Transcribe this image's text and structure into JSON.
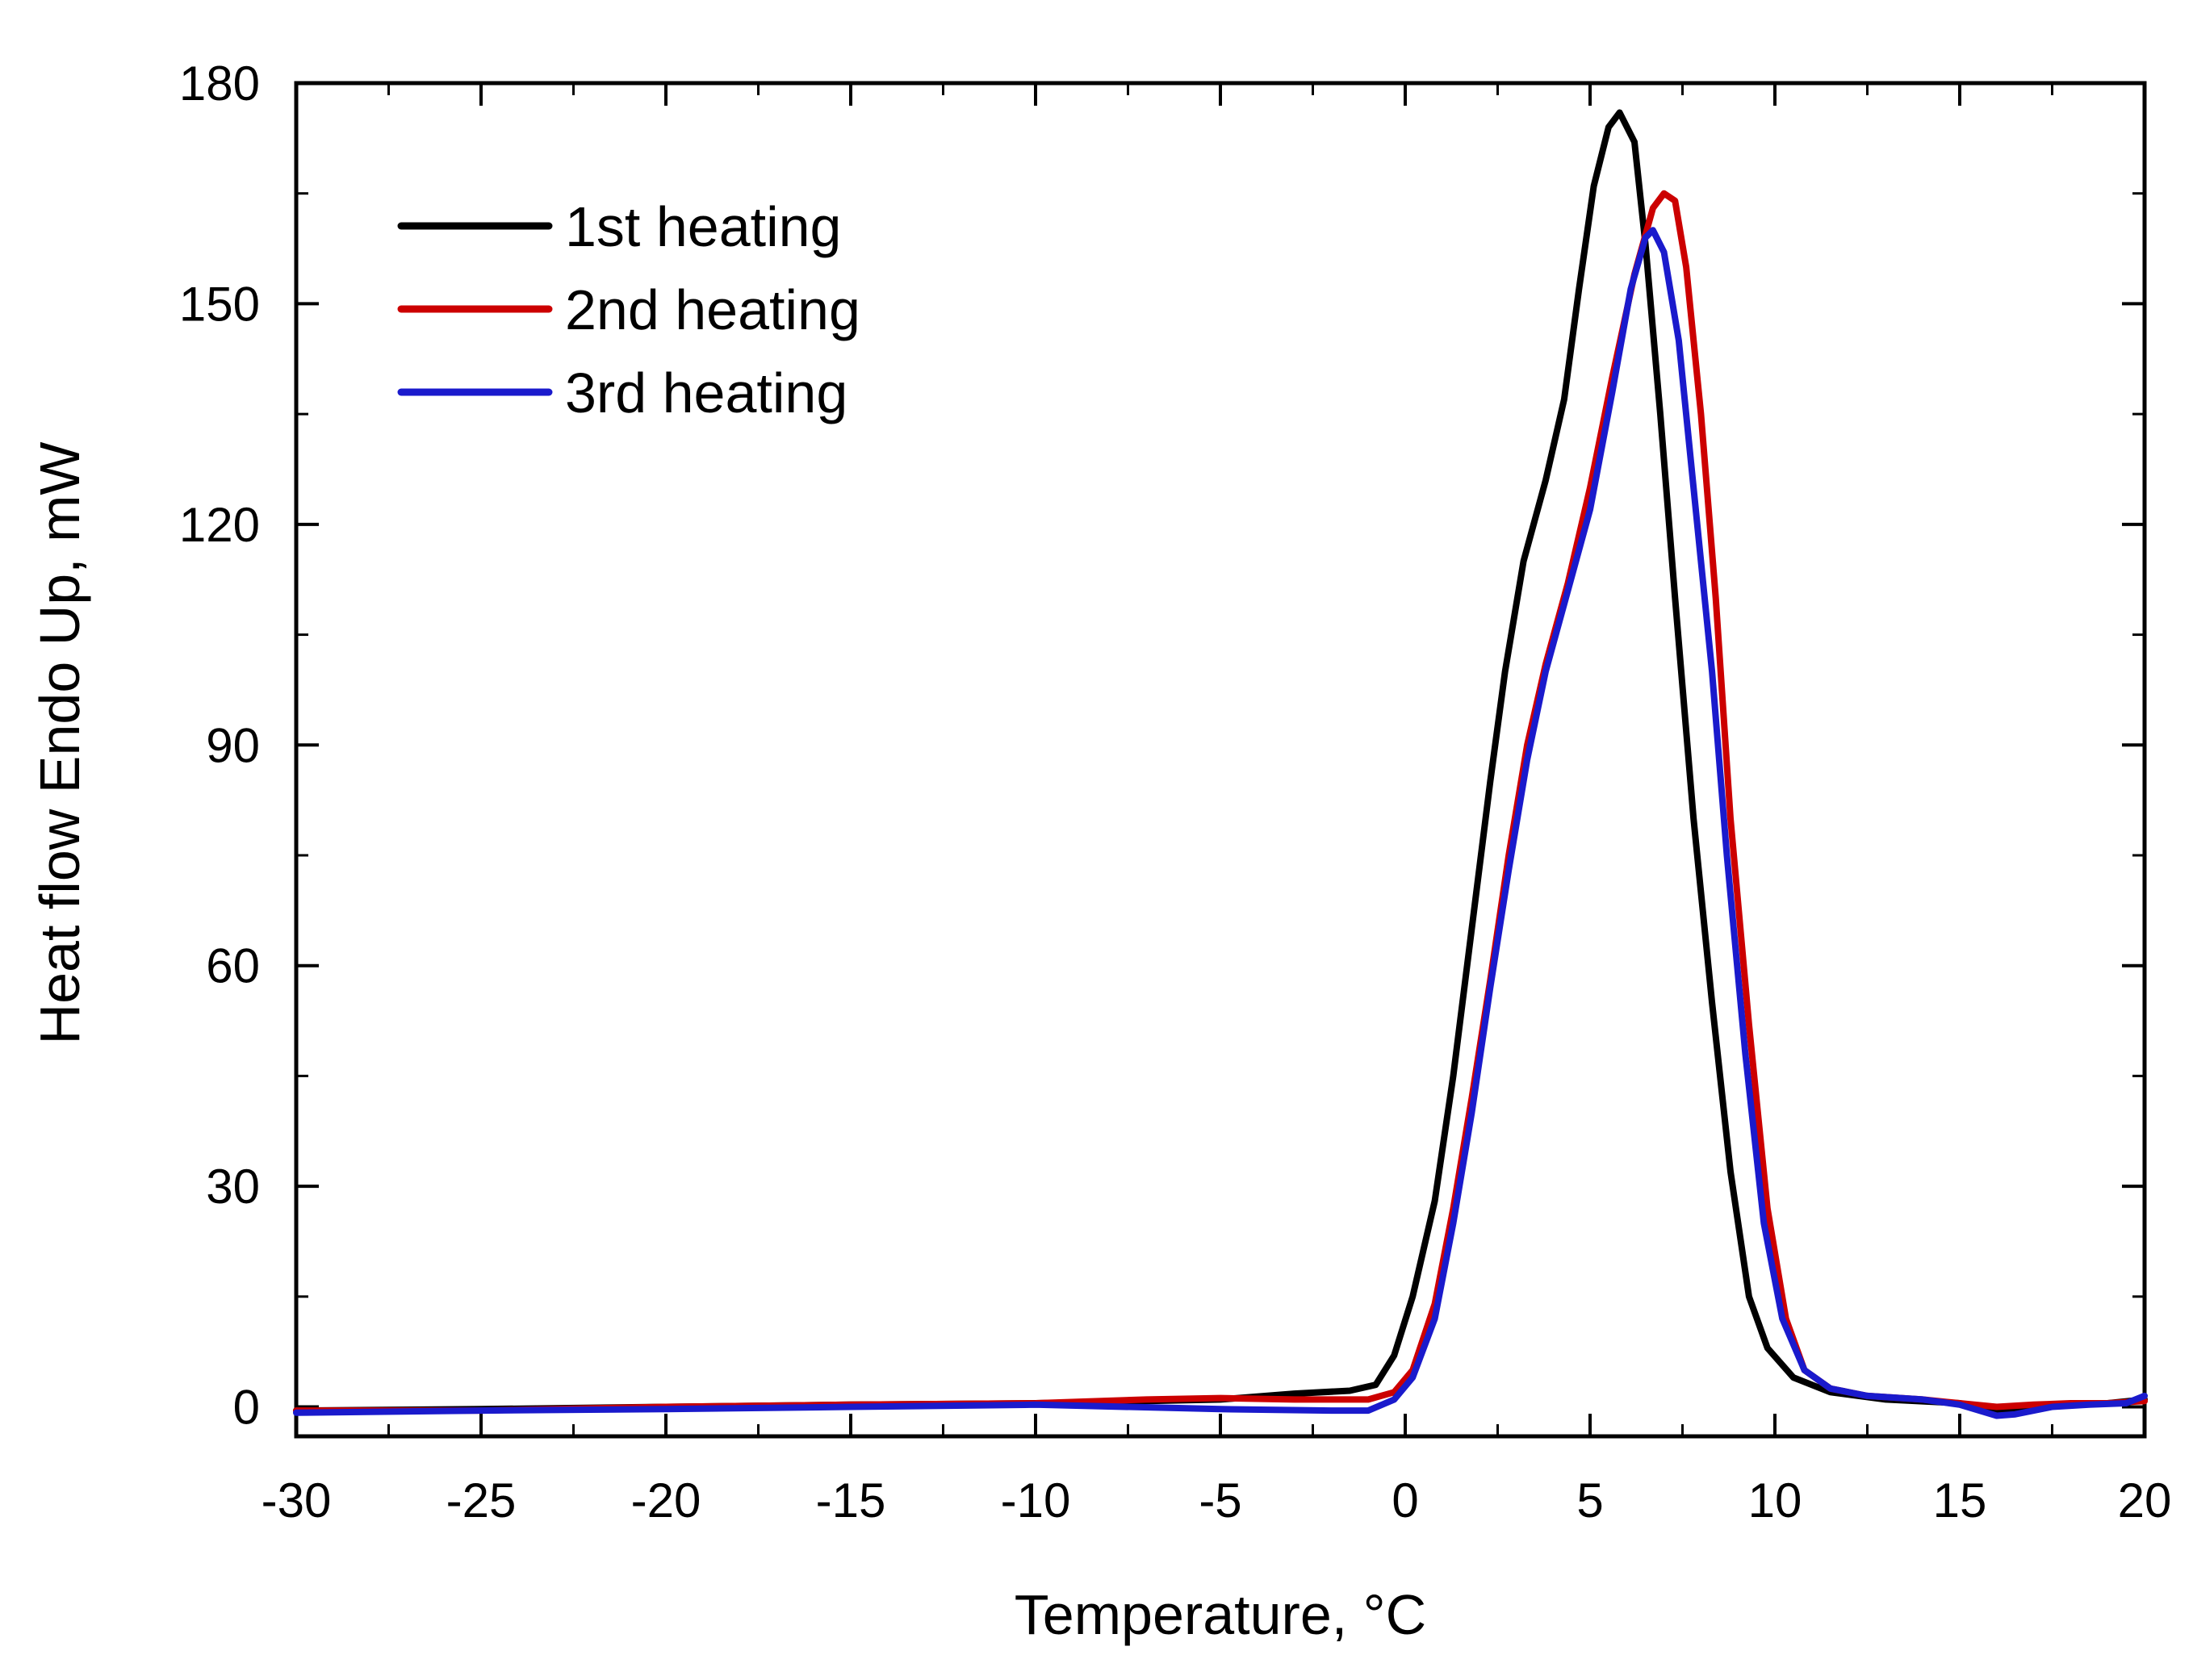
{
  "chart_data": {
    "type": "line",
    "title": "",
    "xlabel": "Temperature, °C",
    "ylabel": "Heat flow Endo Up, mW",
    "xlim": [
      -30,
      20
    ],
    "ylim": [
      -4,
      180
    ],
    "xticks": [
      -30,
      -25,
      -20,
      -15,
      -10,
      -5,
      0,
      5,
      10,
      15,
      20
    ],
    "yticks": [
      0,
      30,
      60,
      90,
      120,
      150,
      180
    ],
    "xtick_labels": [
      "-30",
      "-25",
      "-20",
      "-15",
      "-10",
      "-5",
      "0",
      "5",
      "10",
      "15",
      "20"
    ],
    "ytick_labels": [
      "0",
      "30",
      "60",
      "90",
      "120",
      "150",
      "180"
    ],
    "grid": false,
    "legend_position": "top-left",
    "series": [
      {
        "name": "1st heating",
        "color": "#000000",
        "points": [
          [
            -30,
            -0.5
          ],
          [
            -25,
            -0.3
          ],
          [
            -20,
            0
          ],
          [
            -15,
            0.3
          ],
          [
            -10,
            0.5
          ],
          [
            -5,
            1
          ],
          [
            -3,
            1.8
          ],
          [
            -1.5,
            2.2
          ],
          [
            -0.8,
            3
          ],
          [
            -0.3,
            7
          ],
          [
            0.2,
            15
          ],
          [
            0.8,
            28
          ],
          [
            1.3,
            45
          ],
          [
            1.8,
            65
          ],
          [
            2.3,
            85
          ],
          [
            2.7,
            100
          ],
          [
            3.2,
            115
          ],
          [
            3.8,
            126
          ],
          [
            4.3,
            137
          ],
          [
            4.7,
            152
          ],
          [
            5.1,
            166
          ],
          [
            5.5,
            174
          ],
          [
            5.8,
            176
          ],
          [
            6.2,
            172
          ],
          [
            6.5,
            158
          ],
          [
            6.9,
            135
          ],
          [
            7.3,
            110
          ],
          [
            7.8,
            80
          ],
          [
            8.3,
            55
          ],
          [
            8.8,
            32
          ],
          [
            9.3,
            15
          ],
          [
            9.8,
            8
          ],
          [
            10.5,
            4
          ],
          [
            11.5,
            2
          ],
          [
            13,
            1
          ],
          [
            15,
            0.5
          ],
          [
            16,
            -0.5
          ],
          [
            17,
            0
          ],
          [
            18,
            0.3
          ],
          [
            19,
            0.5
          ],
          [
            20,
            1
          ]
        ]
      },
      {
        "name": "2nd heating",
        "color": "#cc0000",
        "points": [
          [
            -30,
            -0.5
          ],
          [
            -25,
            -0.5
          ],
          [
            -20,
            0
          ],
          [
            -15,
            0.3
          ],
          [
            -10,
            0.5
          ],
          [
            -7,
            1
          ],
          [
            -5,
            1.2
          ],
          [
            -3,
            1
          ],
          [
            -1,
            1
          ],
          [
            -0.3,
            2
          ],
          [
            0.2,
            5
          ],
          [
            0.8,
            14
          ],
          [
            1.3,
            27
          ],
          [
            1.8,
            42
          ],
          [
            2.3,
            58
          ],
          [
            2.8,
            75
          ],
          [
            3.3,
            90
          ],
          [
            3.8,
            101
          ],
          [
            4.4,
            112
          ],
          [
            5,
            125
          ],
          [
            5.6,
            140
          ],
          [
            6.2,
            154
          ],
          [
            6.7,
            163
          ],
          [
            7.0,
            165
          ],
          [
            7.3,
            164
          ],
          [
            7.6,
            155
          ],
          [
            8.0,
            135
          ],
          [
            8.4,
            110
          ],
          [
            8.8,
            80
          ],
          [
            9.3,
            52
          ],
          [
            9.8,
            27
          ],
          [
            10.3,
            12
          ],
          [
            10.8,
            5
          ],
          [
            11.5,
            2.5
          ],
          [
            12.5,
            1.5
          ],
          [
            14,
            1
          ],
          [
            15,
            0.5
          ],
          [
            16,
            0
          ],
          [
            17,
            0.3
          ],
          [
            18,
            0.5
          ],
          [
            19,
            0.5
          ],
          [
            20,
            0.8
          ]
        ]
      },
      {
        "name": "3rd heating",
        "color": "#1a1acc",
        "points": [
          [
            -30,
            -0.8
          ],
          [
            -25,
            -0.5
          ],
          [
            -20,
            -0.3
          ],
          [
            -15,
            0
          ],
          [
            -10,
            0.3
          ],
          [
            -5,
            -0.3
          ],
          [
            -2,
            -0.5
          ],
          [
            -1,
            -0.5
          ],
          [
            -0.3,
            1
          ],
          [
            0.2,
            4
          ],
          [
            0.8,
            12
          ],
          [
            1.3,
            25
          ],
          [
            1.8,
            40
          ],
          [
            2.3,
            57
          ],
          [
            2.8,
            73
          ],
          [
            3.3,
            88
          ],
          [
            3.8,
            100
          ],
          [
            4.4,
            111
          ],
          [
            5,
            122
          ],
          [
            5.6,
            138
          ],
          [
            6.1,
            152
          ],
          [
            6.5,
            159
          ],
          [
            6.7,
            160
          ],
          [
            7.0,
            157
          ],
          [
            7.4,
            145
          ],
          [
            7.8,
            125
          ],
          [
            8.3,
            100
          ],
          [
            8.7,
            75
          ],
          [
            9.2,
            48
          ],
          [
            9.7,
            25
          ],
          [
            10.2,
            12
          ],
          [
            10.8,
            5
          ],
          [
            11.5,
            2.5
          ],
          [
            12.5,
            1.5
          ],
          [
            14,
            1
          ],
          [
            15,
            0.3
          ],
          [
            16,
            -1.2
          ],
          [
            16.5,
            -1
          ],
          [
            17.5,
            0
          ],
          [
            18.5,
            0.3
          ],
          [
            19.5,
            0.5
          ],
          [
            20,
            1.5
          ]
        ]
      }
    ]
  }
}
